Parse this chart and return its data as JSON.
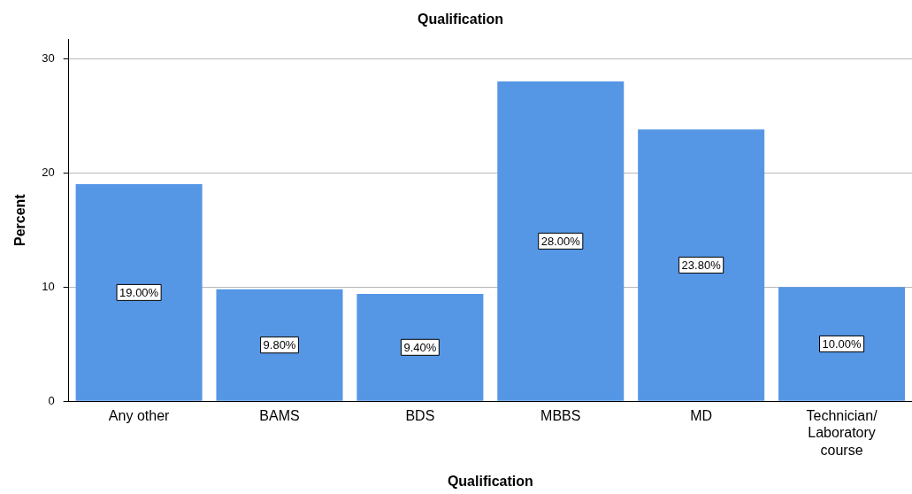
{
  "chart_data": {
    "type": "bar",
    "title": "Qualification",
    "xlabel": "Qualification",
    "ylabel": "Percent",
    "categories": [
      "Any other",
      "BAMS",
      "BDS",
      "MBBS",
      "MD",
      "Technician/ Laboratory course"
    ],
    "values": [
      19,
      9.8,
      9.4,
      28,
      23.8,
      10
    ],
    "value_labels": [
      "19.00%",
      "9.80%",
      "9.40%",
      "28.00%",
      "23.80%",
      "10.00%"
    ],
    "color": "#5596e5",
    "ylim": [
      0,
      31.7
    ],
    "yticks": [
      0,
      10,
      20,
      30
    ],
    "grid": "y"
  }
}
